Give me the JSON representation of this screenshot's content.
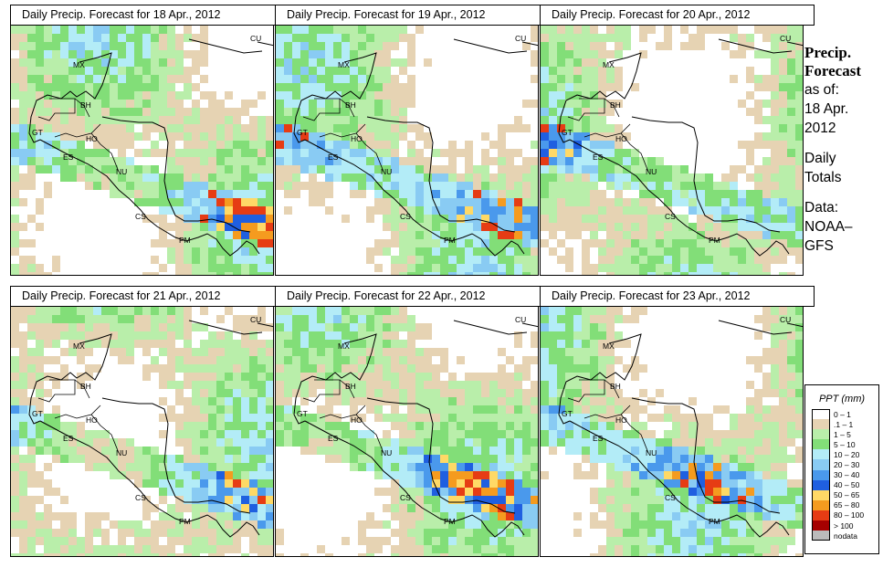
{
  "panels": [
    {
      "title": "Daily Precip. Forecast for  18 Apr., 2012",
      "seed": 18
    },
    {
      "title": "Daily Precip. Forecast for  19 Apr., 2012",
      "seed": 19
    },
    {
      "title": "Daily Precip. Forecast for  20 Apr., 2012",
      "seed": 20
    },
    {
      "title": "Daily Precip. Forecast for  21 Apr., 2012",
      "seed": 21
    },
    {
      "title": "Daily Precip. Forecast for  22 Apr., 2012",
      "seed": 22
    },
    {
      "title": "Daily Precip. Forecast for  23 Apr., 2012",
      "seed": 23
    }
  ],
  "country_labels": [
    "CU",
    "MX",
    "BH",
    "GT",
    "HO",
    "ES",
    "NU",
    "CS",
    "PM"
  ],
  "sidebar": {
    "title_line1": "Precip.",
    "title_line2": "Forecast",
    "asof_line1": "as of:",
    "asof_line2": "18 Apr.",
    "asof_line3": "2012",
    "daily_line1": "Daily",
    "daily_line2": "Totals",
    "data_line1": "Data:",
    "data_line2": "NOAA–",
    "data_line3": "GFS"
  },
  "legend": {
    "title": "PPT (mm)",
    "items": [
      {
        "label": "0 – 1",
        "color": "#ffffff"
      },
      {
        "label": ".1 – 1",
        "color": "#e6d3b3"
      },
      {
        "label": "1 – 5",
        "color": "#b9eeaa"
      },
      {
        "label": "5 – 10",
        "color": "#82de78"
      },
      {
        "label": "10 – 20",
        "color": "#b3ecf7"
      },
      {
        "label": "20 – 30",
        "color": "#89cbf3"
      },
      {
        "label": "30 – 40",
        "color": "#4a99ec"
      },
      {
        "label": "40 – 50",
        "color": "#1f5fe0"
      },
      {
        "label": "50 – 65",
        "color": "#ffd966"
      },
      {
        "label": "65 – 80",
        "color": "#f59b1f"
      },
      {
        "label": "80 – 100",
        "color": "#e63c14"
      },
      {
        "label": "> 100",
        "color": "#a50000"
      },
      {
        "label": "nodata",
        "color": "#bbbbbb"
      }
    ]
  }
}
